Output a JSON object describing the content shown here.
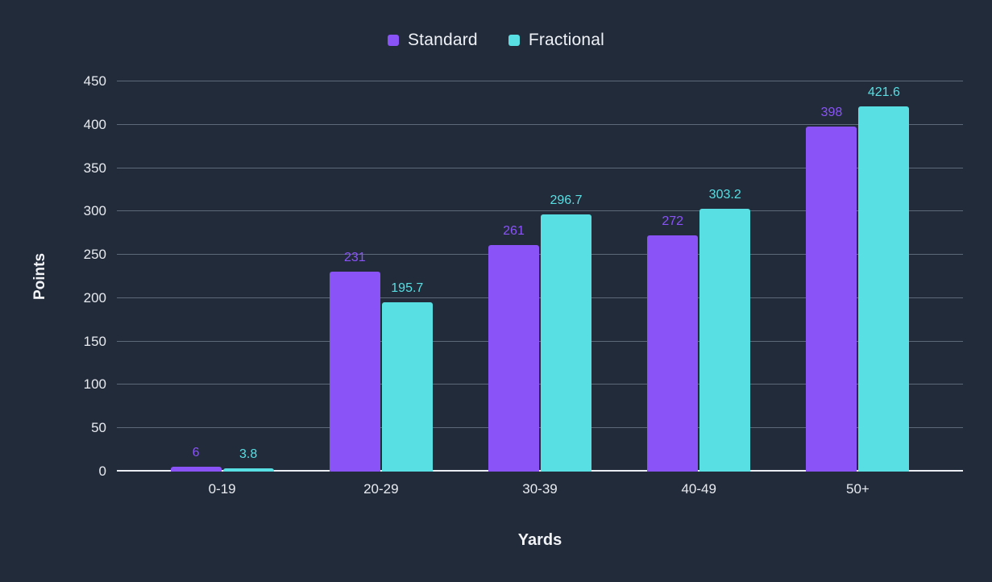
{
  "chart_data": {
    "type": "bar",
    "title": "",
    "categories": [
      "0-19",
      "20-29",
      "30-39",
      "40-49",
      "50+"
    ],
    "series": [
      {
        "name": "Standard",
        "color": "#8a53f8",
        "values": [
          6,
          231,
          261,
          272,
          398
        ],
        "value_labels": [
          "6",
          "231",
          "261",
          "272",
          "398"
        ]
      },
      {
        "name": "Fractional",
        "color": "#58dfe3",
        "values": [
          3.8,
          195.7,
          296.7,
          303.2,
          421.6
        ],
        "value_labels": [
          "3.8",
          "195.7",
          "296.7",
          "303.2",
          "421.6"
        ]
      }
    ],
    "xlabel": "Yards",
    "ylabel": "Points",
    "ylim": [
      0,
      450
    ],
    "yticks": [
      0,
      50,
      100,
      150,
      200,
      250,
      300,
      350,
      400,
      450
    ],
    "grid": true,
    "legend_position": "top"
  },
  "theme": {
    "background": "#222b3a",
    "grid_color": "#5d6878",
    "axis_line_color": "#eaedf2",
    "text_color": "#e8ebf0"
  }
}
